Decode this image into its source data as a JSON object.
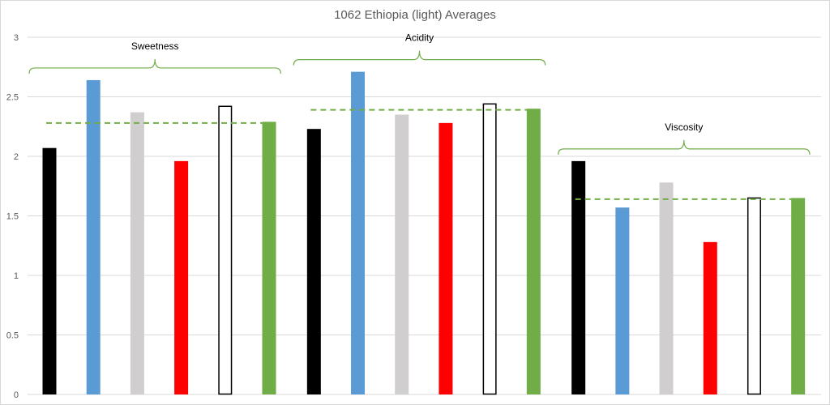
{
  "chart_data": {
    "type": "bar",
    "title": "1062 Ethiopia (light) Averages",
    "xlabel": "",
    "ylabel": "",
    "ylim": [
      0,
      3
    ],
    "yticks": [
      "0",
      "0.5",
      "1",
      "1.5",
      "2",
      "2.5",
      "3"
    ],
    "grid": true,
    "groups": [
      {
        "label": "Sweetness",
        "average": 2.28,
        "bars": [
          {
            "color": "#000000",
            "value": 2.07
          },
          {
            "color": "#5b9bd5",
            "value": 2.64
          },
          {
            "color": "#d0cece",
            "value": 2.37
          },
          {
            "color": "#ff0000",
            "value": 1.96
          },
          {
            "color": "outline",
            "value": 2.42
          },
          {
            "color": "#70ad47",
            "value": 2.29
          }
        ]
      },
      {
        "label": "Acidity",
        "average": 2.39,
        "bars": [
          {
            "color": "#000000",
            "value": 2.23
          },
          {
            "color": "#5b9bd5",
            "value": 2.71
          },
          {
            "color": "#d0cece",
            "value": 2.35
          },
          {
            "color": "#ff0000",
            "value": 2.28
          },
          {
            "color": "outline",
            "value": 2.44
          },
          {
            "color": "#70ad47",
            "value": 2.4
          }
        ]
      },
      {
        "label": "Viscosity",
        "average": 1.64,
        "bars": [
          {
            "color": "#000000",
            "value": 1.96
          },
          {
            "color": "#5b9bd5",
            "value": 1.57
          },
          {
            "color": "#d0cece",
            "value": 1.78
          },
          {
            "color": "#ff0000",
            "value": 1.28
          },
          {
            "color": "outline",
            "value": 1.65
          },
          {
            "color": "#70ad47",
            "value": 1.65
          }
        ]
      }
    ],
    "bracket_color": "#70ad47",
    "average_line_color": "#70ad47",
    "grid_color": "#d9d9d9"
  }
}
